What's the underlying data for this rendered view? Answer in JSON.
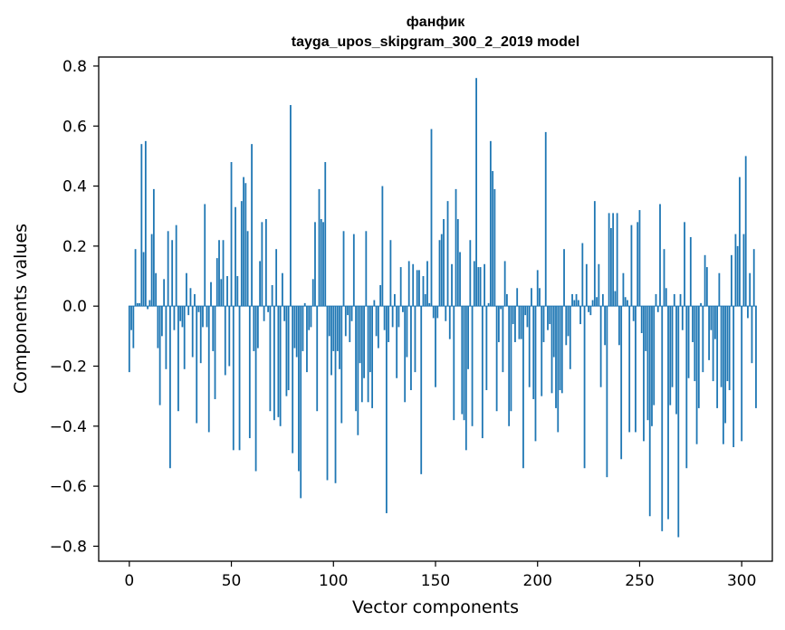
{
  "chart_data": {
    "type": "bar",
    "title": "фанфик",
    "subtitle": "tayga_upos_skipgram_300_2_2019 model",
    "xlabel": "Vector components",
    "ylabel": "Components values",
    "xlim": [
      -15,
      315
    ],
    "ylim": [
      -0.85,
      0.83
    ],
    "xticks": [
      0,
      50,
      100,
      150,
      200,
      250,
      300
    ],
    "yticks": [
      -0.8,
      -0.6,
      -0.4,
      -0.2,
      0.0,
      0.2,
      0.4,
      0.6,
      0.8
    ],
    "ytick_labels": [
      "−0.8",
      "−0.6",
      "−0.4",
      "−0.2",
      "0.0",
      "0.2",
      "0.4",
      "0.6",
      "0.8"
    ],
    "grid": false,
    "bar_color": "#1f77b4",
    "values": [
      -0.22,
      -0.08,
      -0.14,
      0.19,
      0.01,
      0.01,
      0.54,
      0.18,
      0.55,
      -0.01,
      0.02,
      0.24,
      0.39,
      0.11,
      -0.14,
      -0.33,
      -0.1,
      0.09,
      -0.21,
      0.25,
      -0.54,
      0.22,
      -0.08,
      0.27,
      -0.35,
      -0.05,
      -0.07,
      -0.21,
      0.11,
      -0.03,
      0.06,
      -0.17,
      0.04,
      -0.39,
      -0.02,
      -0.19,
      -0.07,
      0.34,
      -0.07,
      -0.42,
      0.08,
      -0.15,
      -0.31,
      0.16,
      0.22,
      0.09,
      0.22,
      -0.23,
      0.1,
      -0.2,
      0.48,
      -0.48,
      0.33,
      0.1,
      -0.48,
      0.35,
      0.43,
      0.41,
      0.25,
      -0.44,
      0.54,
      -0.15,
      -0.55,
      -0.14,
      0.15,
      0.28,
      -0.05,
      0.29,
      -0.02,
      -0.35,
      0.07,
      -0.38,
      0.19,
      -0.37,
      -0.4,
      0.11,
      -0.05,
      -0.3,
      -0.28,
      0.67,
      -0.49,
      -0.14,
      -0.17,
      -0.55,
      -0.64,
      -0.15,
      0.01,
      -0.22,
      -0.08,
      -0.07,
      0.09,
      0.28,
      -0.35,
      0.39,
      0.29,
      0.28,
      0.48,
      -0.58,
      -0.1,
      -0.23,
      -0.15,
      -0.59,
      -0.15,
      -0.21,
      -0.39,
      0.25,
      -0.1,
      -0.03,
      -0.12,
      -0.05,
      0.24,
      -0.35,
      -0.43,
      -0.19,
      -0.32,
      -0.24,
      0.25,
      -0.32,
      -0.22,
      -0.34,
      0.02,
      -0.1,
      -0.14,
      0.07,
      0.4,
      -0.08,
      -0.69,
      -0.12,
      0.22,
      -0.07,
      0.04,
      -0.24,
      -0.07,
      0.13,
      -0.02,
      -0.32,
      -0.17,
      0.15,
      -0.28,
      0.14,
      -0.22,
      0.12,
      0.12,
      -0.56,
      0.1,
      0.04,
      0.15,
      0.01,
      0.59,
      -0.04,
      -0.27,
      -0.04,
      0.22,
      0.24,
      0.29,
      -0.05,
      0.35,
      -0.11,
      0.14,
      -0.38,
      0.39,
      0.29,
      0.18,
      -0.36,
      -0.38,
      -0.48,
      -0.21,
      0.22,
      -0.4,
      0.15,
      0.76,
      0.13,
      0.13,
      -0.44,
      0.14,
      -0.28,
      0.01,
      0.55,
      0.45,
      0.39,
      -0.35,
      -0.12,
      -0.01,
      -0.22,
      0.15,
      0.04,
      -0.4,
      -0.35,
      -0.06,
      -0.12,
      0.06,
      -0.11,
      -0.11,
      -0.54,
      -0.03,
      -0.07,
      -0.27,
      0.06,
      -0.31,
      -0.45,
      0.12,
      0.06,
      -0.3,
      -0.12,
      0.58,
      -0.08,
      -0.06,
      -0.29,
      -0.17,
      -0.34,
      -0.42,
      -0.28,
      -0.29,
      0.19,
      -0.13,
      -0.1,
      -0.21,
      0.04,
      0.02,
      0.04,
      0.02,
      -0.06,
      0.21,
      -0.54,
      0.14,
      -0.02,
      -0.03,
      0.02,
      0.35,
      0.03,
      0.14,
      -0.27,
      0.04,
      -0.13,
      -0.57,
      0.31,
      0.26,
      0.31,
      0.05,
      0.31,
      -0.13,
      -0.51,
      0.11,
      0.03,
      0.02,
      -0.42,
      0.27,
      -0.05,
      -0.42,
      0.28,
      0.32,
      -0.09,
      -0.45,
      -0.15,
      -0.38,
      -0.7,
      -0.4,
      -0.33,
      0.04,
      -0.02,
      0.34,
      -0.75,
      0.19,
      0.06,
      -0.71,
      -0.33,
      -0.27,
      0.04,
      -0.36,
      -0.77,
      0.04,
      -0.08,
      0.28,
      -0.54,
      -0.24,
      0.23,
      -0.12,
      -0.25,
      -0.46,
      -0.34,
      0.01,
      -0.22,
      0.17,
      0.13,
      -0.18,
      -0.08,
      -0.25,
      -0.11,
      -0.34,
      0.11,
      -0.27,
      -0.46,
      -0.39,
      -0.25,
      -0.28,
      0.17,
      -0.47,
      0.24,
      0.2,
      0.43,
      -0.45,
      0.24,
      0.5,
      -0.04,
      0.11,
      -0.19,
      0.19,
      -0.34
    ]
  }
}
